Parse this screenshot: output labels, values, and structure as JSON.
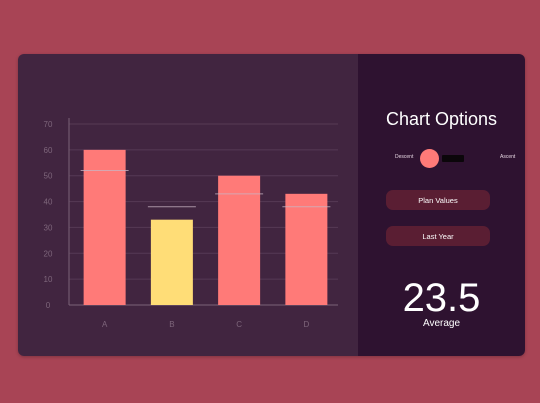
{
  "options": {
    "title": "Chart Options",
    "toggle": {
      "left_label": "Descent",
      "right_label": "Ascent",
      "state": "descent"
    },
    "buttons": {
      "plan_values": "Plan Values",
      "last_year": "Last Year"
    },
    "average": {
      "value": "23.5",
      "label": "Average"
    }
  },
  "colors": {
    "background": "#a84455",
    "chart_panel": "#412540",
    "options_panel": "#2e1230",
    "bar_default": "#ff7a78",
    "bar_highlight": "#ffdd77",
    "button": "#5a1e33"
  },
  "chart_data": {
    "type": "bar",
    "categories": [
      "A",
      "B",
      "C",
      "D"
    ],
    "values": [
      60,
      33,
      50,
      43
    ],
    "plan_values": [
      52,
      38,
      43,
      38
    ],
    "highlight_index": 1,
    "ylim": [
      0,
      70
    ],
    "yticks": [
      0,
      10,
      20,
      30,
      40,
      50,
      60,
      70
    ],
    "grid": true
  }
}
